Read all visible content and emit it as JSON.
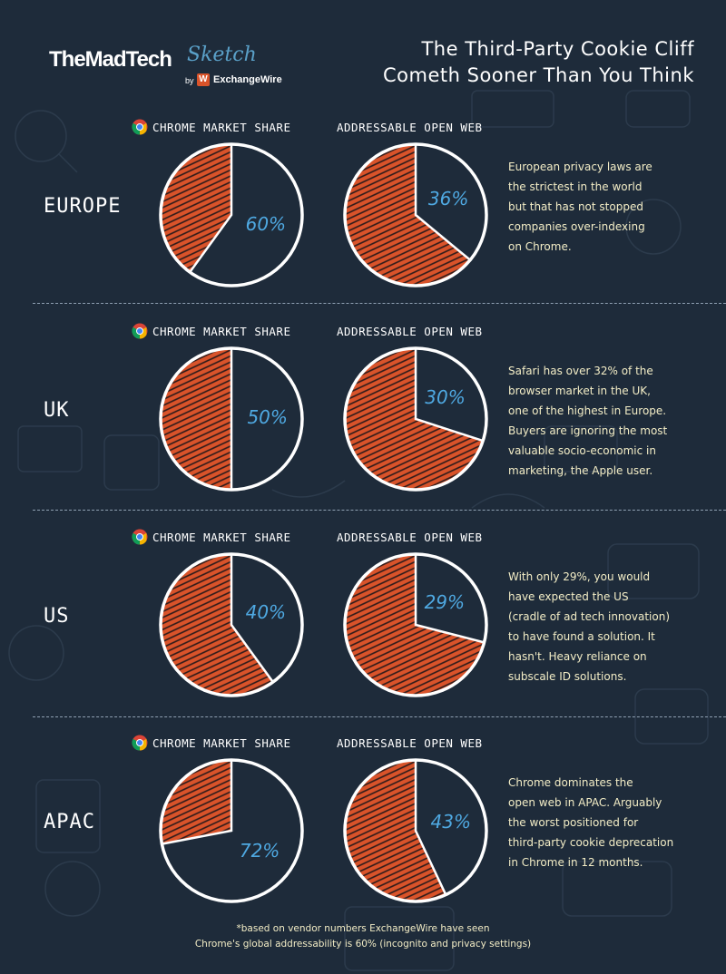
{
  "brand": {
    "name": "TheMadTech",
    "script": "Sketch",
    "by": "by",
    "logo_letter": "W",
    "partner": "ExchangeWire"
  },
  "title_lines": [
    "The Third-Party Cookie Cliff",
    "Cometh Sooner Than You Think"
  ],
  "column_headers": {
    "chrome": "CHROME MARKET SHARE",
    "open_web": "ADDRESSABLE OPEN WEB"
  },
  "colors": {
    "background": "#1e2b3a",
    "slice_fill": "#d9532a",
    "slice_hatch": "#2a1a1a",
    "pie_outline": "#ffffff",
    "percent_text": "#4fa9e2",
    "description_text": "#f3edc6"
  },
  "chart_data": [
    {
      "region": "EUROPE",
      "chrome": {
        "type": "pie",
        "value": 60,
        "label": "60%"
      },
      "open_web": {
        "type": "pie",
        "value": 36,
        "label": "36%"
      },
      "description": [
        "European privacy laws are",
        "the strictest in the world",
        "but that has not stopped",
        "companies over-indexing",
        "on Chrome."
      ]
    },
    {
      "region": "UK",
      "chrome": {
        "type": "pie",
        "value": 50,
        "label": "50%"
      },
      "open_web": {
        "type": "pie",
        "value": 30,
        "label": "30%"
      },
      "description": [
        "Safari has over 32% of the",
        "browser market in the UK,",
        "one of the highest in Europe.",
        "Buyers are ignoring the most",
        "valuable socio-economic in",
        "marketing, the Apple user."
      ]
    },
    {
      "region": "US",
      "chrome": {
        "type": "pie",
        "value": 40,
        "label": "40%"
      },
      "open_web": {
        "type": "pie",
        "value": 29,
        "label": "29%"
      },
      "description": [
        "With only 29%, you would",
        "have expected the US",
        "(cradle of ad tech innovation)",
        "to have found a solution. It",
        "hasn't. Heavy reliance on",
        "subscale ID solutions."
      ]
    },
    {
      "region": "APAC",
      "chrome": {
        "type": "pie",
        "value": 72,
        "label": "72%"
      },
      "open_web": {
        "type": "pie",
        "value": 43,
        "label": "43%"
      },
      "description": [
        "Chrome dominates the",
        "open web in APAC. Arguably",
        "the worst positioned for",
        "third-party cookie deprecation",
        "in Chrome in 12 months."
      ]
    }
  ],
  "footnote_lines": [
    "*based on vendor numbers ExchangeWire have seen",
    "Chrome's global addressability is 60% (incognito and privacy settings)"
  ]
}
